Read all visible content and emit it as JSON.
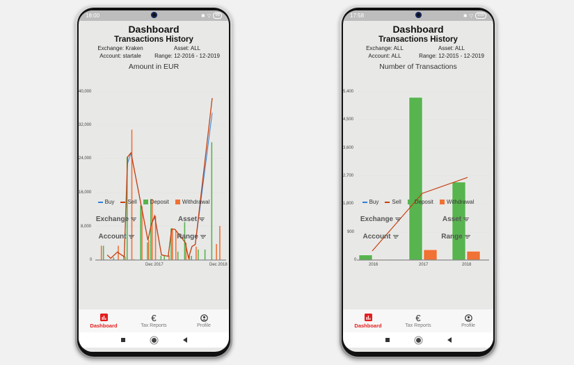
{
  "phones": [
    {
      "status_time": "18:00",
      "battery": "98",
      "title": "Dashboard",
      "subtitle": "Transactions History",
      "meta": {
        "exchange": "Exchange: Kraken",
        "asset": "Asset: ALL",
        "account": "Account: startale",
        "range": "Range: 12-2016 - 12-2019"
      },
      "chart_title": "Amount in EUR",
      "legend": [
        "Buy",
        "Sell",
        "Deposit",
        "Withdrawal"
      ],
      "filters": {
        "exchange": "Exchange",
        "asset": "Asset",
        "account": "Account",
        "range": "Range"
      },
      "nav": {
        "dashboard": "Dashboard",
        "tax_reports": "Tax Reports",
        "profile": "Profile"
      }
    },
    {
      "status_time": "17:58",
      "battery": "100",
      "title": "Dashboard",
      "subtitle": "Transactions History",
      "meta": {
        "exchange": "Exchange: ALL",
        "asset": "Asset: ALL",
        "account": "Account: ALL",
        "range": "Range: 12-2015 - 12-2019"
      },
      "chart_title": "Number of Transactions",
      "legend": [
        "Buy",
        "Sell",
        "Deposit",
        "Withdrawal"
      ],
      "filters": {
        "exchange": "Exchange",
        "asset": "Asset",
        "account": "Account",
        "range": "Range"
      },
      "nav": {
        "dashboard": "Dashboard",
        "tax_reports": "Tax Reports",
        "profile": "Profile"
      }
    }
  ],
  "colors": {
    "buy": "#2f7fd8",
    "sell": "#c6400e",
    "deposit": "#58b44f",
    "withdrawal": "#f07235",
    "active_nav": "#e41e1e"
  },
  "chart_data": [
    {
      "type": "bar",
      "title": "Amount in EUR",
      "xlabel": "",
      "ylabel": "",
      "ylim": [
        0,
        40000
      ],
      "yticks": [
        "0",
        "8,000",
        "16,000",
        "24,000",
        "32,000",
        "40,000"
      ],
      "xticks": [
        "Dec 2017",
        "Dec 2018"
      ],
      "legend_position": "bottom",
      "grid": true,
      "x": [
        1,
        2,
        3,
        4,
        5,
        6,
        7,
        8,
        9,
        10,
        11,
        12,
        13,
        14,
        15,
        16,
        17,
        18,
        19,
        20,
        21,
        22,
        23,
        24,
        25,
        26,
        27,
        28,
        29,
        30,
        31,
        32,
        33,
        34,
        35,
        36,
        37
      ],
      "series": [
        {
          "name": "Deposit",
          "type": "bar",
          "values": [
            0,
            3400,
            0,
            0,
            600,
            0,
            0,
            1000,
            24500,
            0,
            200,
            0,
            13000,
            0,
            4200,
            14500,
            0,
            0,
            1000,
            1000,
            0,
            7500,
            0,
            2000,
            0,
            9000,
            0,
            1000,
            0,
            2500,
            0,
            2500,
            0,
            28000,
            0,
            0,
            0
          ]
        },
        {
          "name": "Withdrawal",
          "type": "bar",
          "values": [
            3400,
            0,
            0,
            0,
            0,
            3400,
            0,
            800,
            0,
            31000,
            0,
            0,
            12800,
            0,
            4700,
            14500,
            10500,
            0,
            0,
            0,
            1100,
            7300,
            7000,
            0,
            0,
            4100,
            1000,
            0,
            3200,
            0,
            0,
            0,
            0,
            0,
            3800,
            8100,
            0
          ]
        },
        {
          "name": "Buy",
          "type": "line",
          "values": [
            null,
            null,
            1200,
            400,
            null,
            1900,
            1300,
            800,
            23000,
            25500,
            null,
            null,
            null,
            null,
            4700,
            8500,
            10200,
            null,
            1200,
            null,
            900,
            7400,
            7300,
            null,
            null,
            4200,
            500,
            3200,
            3700,
            null,
            null,
            null,
            null,
            35000,
            null,
            null,
            null
          ]
        },
        {
          "name": "Sell",
          "type": "line",
          "values": [
            null,
            null,
            1200,
            400,
            null,
            1900,
            1300,
            800,
            24500,
            25500,
            null,
            null,
            null,
            null,
            4700,
            8500,
            10500,
            null,
            1200,
            null,
            900,
            7400,
            7300,
            null,
            null,
            4200,
            500,
            3200,
            3700,
            null,
            null,
            null,
            null,
            38500,
            null,
            null,
            null
          ]
        }
      ]
    },
    {
      "type": "bar",
      "title": "Number of Transactions",
      "xlabel": "",
      "ylabel": "",
      "ylim": [
        0,
        5400
      ],
      "yticks": [
        "0",
        "900",
        "1,800",
        "2,700",
        "3,600",
        "4,500",
        "5,400"
      ],
      "categories": [
        "2016",
        "2017",
        "2018"
      ],
      "legend_position": "bottom",
      "grid": true,
      "series": [
        {
          "name": "Deposit",
          "type": "bar",
          "values": [
            160,
            5220,
            2500
          ]
        },
        {
          "name": "Withdrawal",
          "type": "bar",
          "values": [
            20,
            330,
            280
          ]
        },
        {
          "name": "Sell",
          "type": "line",
          "values": [
            290,
            2140,
            2650
          ]
        }
      ]
    }
  ]
}
